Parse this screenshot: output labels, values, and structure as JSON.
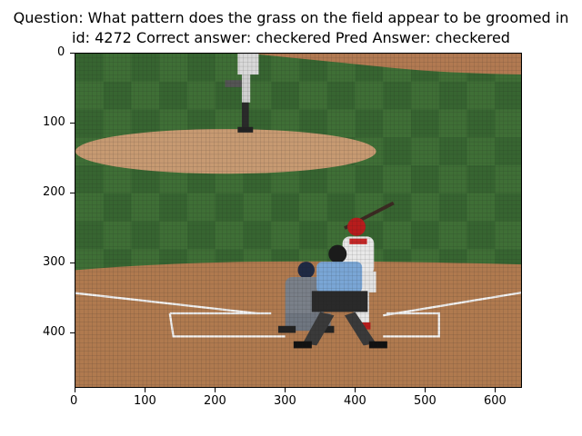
{
  "figure": {
    "title_line1": "Question: What pattern does the grass on the field appear to be groomed in",
    "title_line2": "id: 4272 Correct answer: checkered Pred Answer: checkered"
  },
  "axes": {
    "x_ticks": [
      "0",
      "100",
      "200",
      "300",
      "400",
      "500",
      "600"
    ],
    "y_ticks": [
      "0",
      "100",
      "200",
      "300",
      "400"
    ]
  },
  "image": {
    "description_icon": "baseball-field-photo",
    "colors": {
      "grass": "#3f6f36",
      "grass_dark": "#335d2c",
      "dirt": "#b07a4f",
      "mound": "#c79a72",
      "chalk": "#f2f2f2",
      "batter_uniform": "#e9e9e9",
      "batter_red": "#c62828",
      "umpire_shirt": "#7aa6d6",
      "catcher_uniform": "#6f7680",
      "net": "#2b2b2b"
    }
  }
}
